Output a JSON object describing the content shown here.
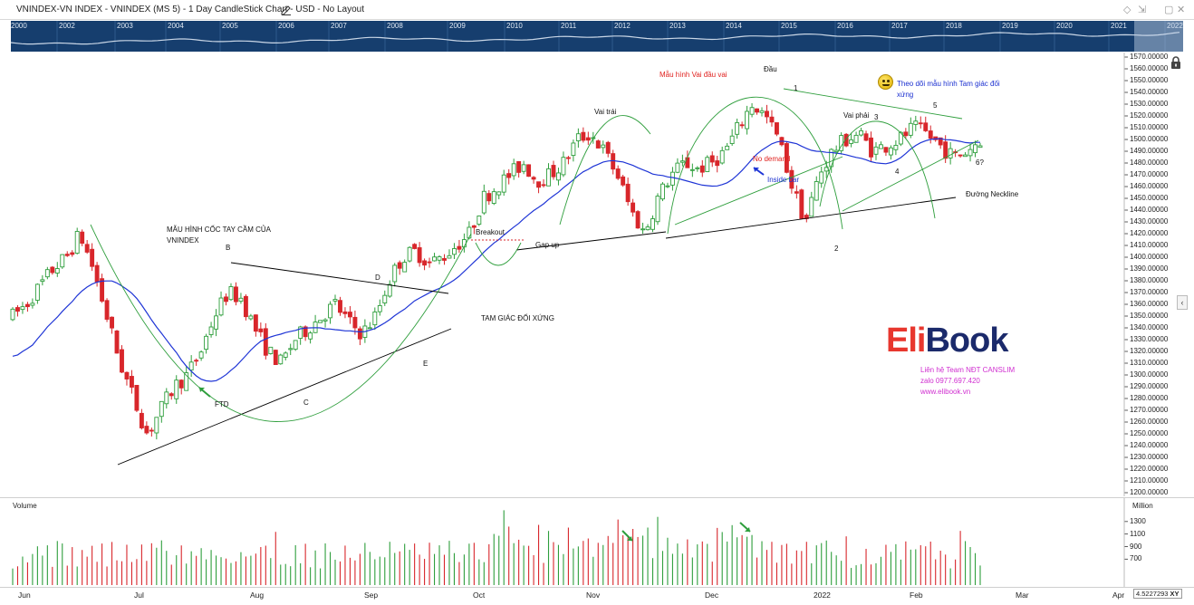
{
  "window": {
    "title": "VNINDEX-VN INDEX - VNINDEX (MS 5) - 1 Day CandleStick Chart - USD - No Layout",
    "edit_icon": "pencil-icon",
    "controls": [
      "◇",
      "⇲",
      "▢",
      "✕"
    ]
  },
  "overview": {
    "years": [
      "2000",
      "2002",
      "2003",
      "2004",
      "2005",
      "2006",
      "2007",
      "2008",
      "2009",
      "2010",
      "2011",
      "2012",
      "2013",
      "2014",
      "2015",
      "2016",
      "2017",
      "2018",
      "2019",
      "2020",
      "2021",
      "2022"
    ],
    "colors": {
      "background": "#163e6e",
      "line": "#c9d6e6"
    }
  },
  "price_axis": {
    "ticks": [
      "1570.00000",
      "1560.00000",
      "1550.00000",
      "1540.00000",
      "1530.00000",
      "1520.00000",
      "1510.00000",
      "1500.00000",
      "1490.00000",
      "1480.00000",
      "1470.00000",
      "1460.00000",
      "1450.00000",
      "1440.00000",
      "1430.00000",
      "1420.00000",
      "1410.00000",
      "1400.00000",
      "1390.00000",
      "1380.00000",
      "1370.00000",
      "1360.00000",
      "1350.00000",
      "1340.00000",
      "1330.00000",
      "1320.00000",
      "1310.00000",
      "1300.00000",
      "1290.00000",
      "1280.00000",
      "1270.00000",
      "1260.00000",
      "1250.00000",
      "1240.00000",
      "1230.00000",
      "1220.00000",
      "1210.00000",
      "1200.00000"
    ]
  },
  "volume_axis": {
    "label": "Volume",
    "unit": "Million",
    "ticks": [
      "1300",
      "1100",
      "900",
      "700"
    ]
  },
  "date_axis": {
    "months": [
      "Jun",
      "Jul",
      "Aug",
      "Sep",
      "Oct",
      "Nov",
      "Dec",
      "2022",
      "Feb",
      "Mar",
      "Apr"
    ],
    "xy_readout": "4.5227293",
    "xy_label": "XY"
  },
  "annotations": {
    "cup_title_1": "MẪU HÌNH CỐC TAY CẦM CỦA",
    "cup_title_2": "VNINDEX",
    "b": "B",
    "c": "C",
    "d": "D",
    "e": "E",
    "ftd": "FTD",
    "triangle": "TAM GIÁC ĐỐI XỨNG",
    "breakout": "Breakout",
    "gap_up": "Gap up",
    "hs_pattern": "Mẫu hình Vai đầu vai",
    "head": "Đầu",
    "left_shoulder": "Vai trái",
    "right_shoulder": "Vai phải",
    "no_demand": "No demand",
    "inside_bar": "Inside bar",
    "neckline": "Đường Neckline",
    "watch_1": "Theo dõi mẫu hình Tam giác đối",
    "watch_2": "xứng",
    "p1": "1",
    "p2": "2",
    "p3": "3",
    "p4": "4",
    "p5": "5",
    "p6": "6?"
  },
  "branding": {
    "logo_part1": "Eli",
    "logo_part2": "Book",
    "contact_1": "Liên hệ Team NĐT CANSLIM",
    "contact_2": "zalo 0977.697.420",
    "contact_3": "www.elibook.vn"
  },
  "icons": {
    "lock": "lock-icon",
    "collapse": "chevron-left-icon",
    "smiley": "smiley-icon",
    "arrows": "arrow-icon"
  },
  "colors": {
    "up": "#2e9e3c",
    "down": "#d8262b",
    "ma": "#1f35d6",
    "trend": "#000000",
    "arc": "#2e9e3c",
    "red_text": "#e0221f",
    "blue_text": "#1a2fd0",
    "logo_red": "#e8372e",
    "logo_navy": "#1b2a6b"
  },
  "chart_data": {
    "type": "candlestick",
    "title": "VNINDEX-VN INDEX - VNINDEX (MS 5) - 1 Day CandleStick Chart - USD",
    "ylim": [
      1200,
      1575
    ],
    "volume_ylim": [
      300,
      1500
    ],
    "x_months": [
      "Jun",
      "Jul",
      "Aug",
      "Sep",
      "Oct",
      "Nov",
      "Dec",
      "2022",
      "Feb",
      "Mar",
      "Apr"
    ],
    "close_approx": [
      1350,
      1360,
      1375,
      1390,
      1400,
      1420,
      1390,
      1350,
      1310,
      1280,
      1250,
      1270,
      1290,
      1300,
      1320,
      1350,
      1370,
      1365,
      1340,
      1320,
      1310,
      1330,
      1340,
      1350,
      1360,
      1345,
      1335,
      1350,
      1380,
      1400,
      1405,
      1395,
      1400,
      1410,
      1420,
      1450,
      1460,
      1470,
      1480,
      1465,
      1470,
      1480,
      1500,
      1505,
      1490,
      1470,
      1440,
      1420,
      1450,
      1470,
      1480,
      1475,
      1480,
      1490,
      1510,
      1530,
      1520,
      1500,
      1460,
      1430,
      1470,
      1490,
      1500,
      1505,
      1490,
      1495,
      1500,
      1510,
      1505,
      1495,
      1485,
      1490,
      1500
    ]
  }
}
